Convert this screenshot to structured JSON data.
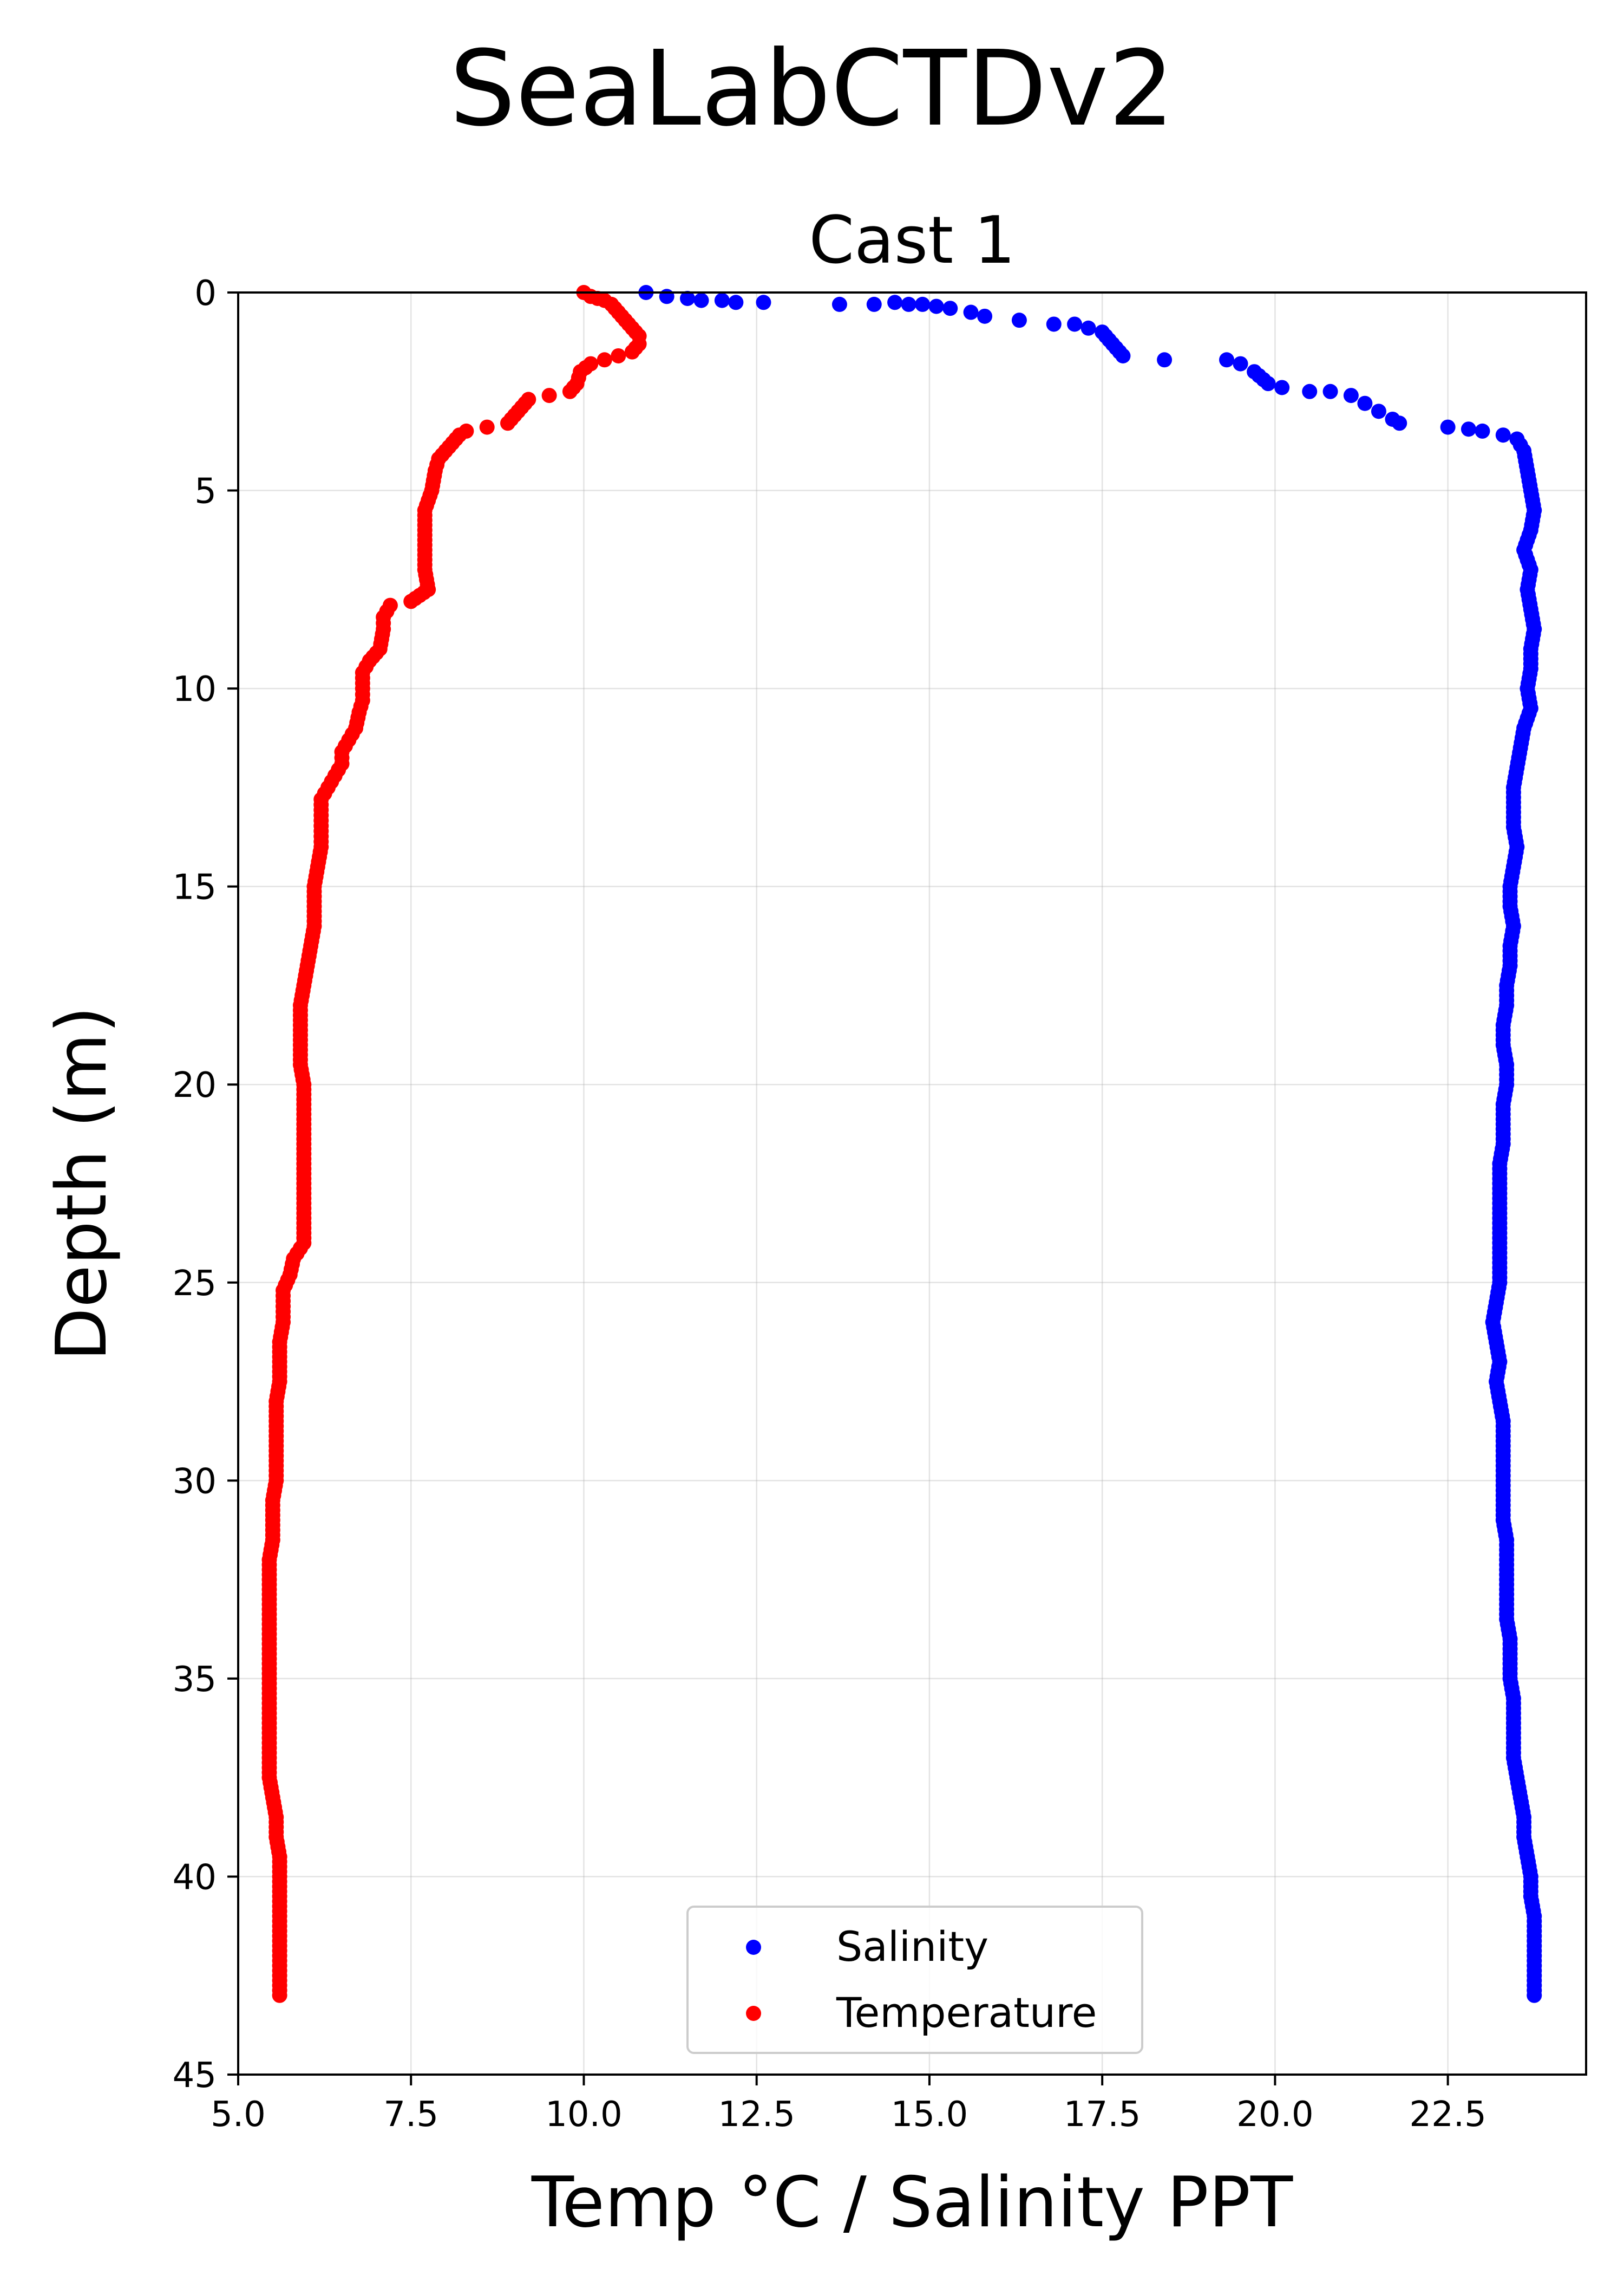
{
  "figure": {
    "suptitle": "SeaLabCTDv2"
  },
  "chart_data": {
    "type": "scatter",
    "title": "Cast 1",
    "xlabel": "Temp °C / Salinity PPT",
    "ylabel": "Depth (m)",
    "xlim": [
      5.0,
      24.5
    ],
    "ylim": [
      45,
      0
    ],
    "y_inverted": true,
    "grid": true,
    "legend_position": "lower center",
    "x_ticks": [
      5.0,
      7.5,
      10.0,
      12.5,
      15.0,
      17.5,
      20.0,
      22.5
    ],
    "x_tick_labels": [
      "5.0",
      "7.5",
      "10.0",
      "12.5",
      "15.0",
      "17.5",
      "20.0",
      "22.5"
    ],
    "y_ticks": [
      0,
      5,
      10,
      15,
      20,
      25,
      30,
      35,
      40,
      45
    ],
    "y_tick_labels": [
      "0",
      "5",
      "10",
      "15",
      "20",
      "25",
      "30",
      "35",
      "40",
      "45"
    ],
    "series": [
      {
        "name": "Salinity",
        "color": "#0000ff",
        "points": [
          [
            10.9,
            0.0
          ],
          [
            11.2,
            0.1
          ],
          [
            11.5,
            0.15
          ],
          [
            11.7,
            0.2
          ],
          [
            12.0,
            0.2
          ],
          [
            12.2,
            0.25
          ],
          [
            12.6,
            0.25
          ],
          [
            13.7,
            0.3
          ],
          [
            14.2,
            0.3
          ],
          [
            14.5,
            0.25
          ],
          [
            14.7,
            0.3
          ],
          [
            14.9,
            0.3
          ],
          [
            15.1,
            0.35
          ],
          [
            15.3,
            0.4
          ],
          [
            15.6,
            0.5
          ],
          [
            15.8,
            0.6
          ],
          [
            16.3,
            0.7
          ],
          [
            16.8,
            0.8
          ],
          [
            17.1,
            0.8
          ],
          [
            17.3,
            0.9
          ],
          [
            17.5,
            1.0
          ],
          [
            17.6,
            1.2
          ],
          [
            17.7,
            1.4
          ],
          [
            17.8,
            1.6
          ],
          [
            18.4,
            1.7
          ],
          [
            19.3,
            1.7
          ],
          [
            19.5,
            1.8
          ],
          [
            19.7,
            2.0
          ],
          [
            19.9,
            2.3
          ],
          [
            20.1,
            2.4
          ],
          [
            20.5,
            2.5
          ],
          [
            20.8,
            2.5
          ],
          [
            21.1,
            2.6
          ],
          [
            21.3,
            2.8
          ],
          [
            21.5,
            3.0
          ],
          [
            21.7,
            3.2
          ],
          [
            21.8,
            3.3
          ],
          [
            22.5,
            3.4
          ],
          [
            22.8,
            3.45
          ],
          [
            23.0,
            3.5
          ],
          [
            23.3,
            3.6
          ],
          [
            23.5,
            3.7
          ],
          [
            23.6,
            4.0
          ],
          [
            23.65,
            4.5
          ],
          [
            23.7,
            5.0
          ],
          [
            23.75,
            5.5
          ],
          [
            23.7,
            6.0
          ],
          [
            23.6,
            6.5
          ],
          [
            23.7,
            7.0
          ],
          [
            23.65,
            7.5
          ],
          [
            23.7,
            8.0
          ],
          [
            23.75,
            8.5
          ],
          [
            23.7,
            9.0
          ],
          [
            23.7,
            9.5
          ],
          [
            23.65,
            10.0
          ],
          [
            23.7,
            10.5
          ],
          [
            23.6,
            11.0
          ],
          [
            23.55,
            11.5
          ],
          [
            23.5,
            12.0
          ],
          [
            23.45,
            12.5
          ],
          [
            23.45,
            13.0
          ],
          [
            23.45,
            13.5
          ],
          [
            23.5,
            14.0
          ],
          [
            23.45,
            14.5
          ],
          [
            23.4,
            15.0
          ],
          [
            23.4,
            15.5
          ],
          [
            23.45,
            16.0
          ],
          [
            23.4,
            16.5
          ],
          [
            23.4,
            17.0
          ],
          [
            23.35,
            17.5
          ],
          [
            23.35,
            18.0
          ],
          [
            23.3,
            18.5
          ],
          [
            23.3,
            19.0
          ],
          [
            23.35,
            19.5
          ],
          [
            23.35,
            20.0
          ],
          [
            23.3,
            20.5
          ],
          [
            23.3,
            21.0
          ],
          [
            23.3,
            21.5
          ],
          [
            23.25,
            22.0
          ],
          [
            23.25,
            22.5
          ],
          [
            23.25,
            23.0
          ],
          [
            23.25,
            23.5
          ],
          [
            23.25,
            24.0
          ],
          [
            23.25,
            24.5
          ],
          [
            23.25,
            25.0
          ],
          [
            23.2,
            25.5
          ],
          [
            23.15,
            26.0
          ],
          [
            23.2,
            26.5
          ],
          [
            23.25,
            27.0
          ],
          [
            23.2,
            27.5
          ],
          [
            23.25,
            28.0
          ],
          [
            23.3,
            28.5
          ],
          [
            23.3,
            29.0
          ],
          [
            23.3,
            29.5
          ],
          [
            23.3,
            30.0
          ],
          [
            23.3,
            30.5
          ],
          [
            23.3,
            31.0
          ],
          [
            23.35,
            31.5
          ],
          [
            23.35,
            32.0
          ],
          [
            23.35,
            32.5
          ],
          [
            23.35,
            33.0
          ],
          [
            23.35,
            33.5
          ],
          [
            23.4,
            34.0
          ],
          [
            23.4,
            34.5
          ],
          [
            23.4,
            35.0
          ],
          [
            23.45,
            35.5
          ],
          [
            23.45,
            36.0
          ],
          [
            23.45,
            36.5
          ],
          [
            23.45,
            37.0
          ],
          [
            23.5,
            37.5
          ],
          [
            23.55,
            38.0
          ],
          [
            23.6,
            38.5
          ],
          [
            23.6,
            39.0
          ],
          [
            23.65,
            39.5
          ],
          [
            23.7,
            40.0
          ],
          [
            23.7,
            40.5
          ],
          [
            23.75,
            41.0
          ],
          [
            23.75,
            41.5
          ],
          [
            23.75,
            42.0
          ],
          [
            23.75,
            42.5
          ],
          [
            23.75,
            43.0
          ]
        ]
      },
      {
        "name": "Temperature",
        "color": "#ff0000",
        "points": [
          [
            10.0,
            0.0
          ],
          [
            10.1,
            0.1
          ],
          [
            10.2,
            0.15
          ],
          [
            10.3,
            0.2
          ],
          [
            10.4,
            0.3
          ],
          [
            10.5,
            0.5
          ],
          [
            10.6,
            0.7
          ],
          [
            10.7,
            0.9
          ],
          [
            10.8,
            1.1
          ],
          [
            10.8,
            1.3
          ],
          [
            10.7,
            1.5
          ],
          [
            10.5,
            1.6
          ],
          [
            10.3,
            1.7
          ],
          [
            10.1,
            1.8
          ],
          [
            9.95,
            2.0
          ],
          [
            9.9,
            2.3
          ],
          [
            9.8,
            2.5
          ],
          [
            9.5,
            2.6
          ],
          [
            9.2,
            2.7
          ],
          [
            9.1,
            2.9
          ],
          [
            9.0,
            3.1
          ],
          [
            8.9,
            3.3
          ],
          [
            8.6,
            3.4
          ],
          [
            8.3,
            3.5
          ],
          [
            8.2,
            3.6
          ],
          [
            8.1,
            3.8
          ],
          [
            8.0,
            4.0
          ],
          [
            7.9,
            4.2
          ],
          [
            7.85,
            4.5
          ],
          [
            7.8,
            5.0
          ],
          [
            7.7,
            5.5
          ],
          [
            7.7,
            6.0
          ],
          [
            7.7,
            6.5
          ],
          [
            7.7,
            7.0
          ],
          [
            7.75,
            7.5
          ],
          [
            7.5,
            7.8
          ],
          [
            7.2,
            7.9
          ],
          [
            7.1,
            8.2
          ],
          [
            7.1,
            8.5
          ],
          [
            7.05,
            9.0
          ],
          [
            6.9,
            9.3
          ],
          [
            6.8,
            9.6
          ],
          [
            6.8,
            10.0
          ],
          [
            6.8,
            10.3
          ],
          [
            6.75,
            10.6
          ],
          [
            6.7,
            11.0
          ],
          [
            6.6,
            11.3
          ],
          [
            6.5,
            11.6
          ],
          [
            6.5,
            11.9
          ],
          [
            6.4,
            12.2
          ],
          [
            6.3,
            12.5
          ],
          [
            6.2,
            12.8
          ],
          [
            6.2,
            13.2
          ],
          [
            6.2,
            13.6
          ],
          [
            6.2,
            14.0
          ],
          [
            6.15,
            14.5
          ],
          [
            6.1,
            15.0
          ],
          [
            6.1,
            15.5
          ],
          [
            6.1,
            16.0
          ],
          [
            6.05,
            16.5
          ],
          [
            6.0,
            17.0
          ],
          [
            5.95,
            17.5
          ],
          [
            5.9,
            18.0
          ],
          [
            5.9,
            18.5
          ],
          [
            5.9,
            19.0
          ],
          [
            5.9,
            19.5
          ],
          [
            5.95,
            20.0
          ],
          [
            5.95,
            20.5
          ],
          [
            5.95,
            21.0
          ],
          [
            5.95,
            21.5
          ],
          [
            5.95,
            22.0
          ],
          [
            5.95,
            22.5
          ],
          [
            5.95,
            23.0
          ],
          [
            5.95,
            23.5
          ],
          [
            5.95,
            24.0
          ],
          [
            5.8,
            24.4
          ],
          [
            5.75,
            24.8
          ],
          [
            5.65,
            25.2
          ],
          [
            5.65,
            25.6
          ],
          [
            5.65,
            26.0
          ],
          [
            5.6,
            26.5
          ],
          [
            5.6,
            27.0
          ],
          [
            5.6,
            27.5
          ],
          [
            5.55,
            28.0
          ],
          [
            5.55,
            28.5
          ],
          [
            5.55,
            29.0
          ],
          [
            5.55,
            29.5
          ],
          [
            5.55,
            30.0
          ],
          [
            5.5,
            30.5
          ],
          [
            5.5,
            31.0
          ],
          [
            5.5,
            31.5
          ],
          [
            5.45,
            32.0
          ],
          [
            5.45,
            32.5
          ],
          [
            5.45,
            33.0
          ],
          [
            5.45,
            33.5
          ],
          [
            5.45,
            34.0
          ],
          [
            5.45,
            34.5
          ],
          [
            5.45,
            35.0
          ],
          [
            5.45,
            35.5
          ],
          [
            5.45,
            36.0
          ],
          [
            5.45,
            36.5
          ],
          [
            5.45,
            37.0
          ],
          [
            5.45,
            37.5
          ],
          [
            5.5,
            38.0
          ],
          [
            5.55,
            38.5
          ],
          [
            5.55,
            39.0
          ],
          [
            5.6,
            39.5
          ],
          [
            5.6,
            40.0
          ],
          [
            5.6,
            40.5
          ],
          [
            5.6,
            41.0
          ],
          [
            5.6,
            41.5
          ],
          [
            5.6,
            42.0
          ],
          [
            5.6,
            42.5
          ],
          [
            5.6,
            43.0
          ]
        ]
      }
    ]
  }
}
